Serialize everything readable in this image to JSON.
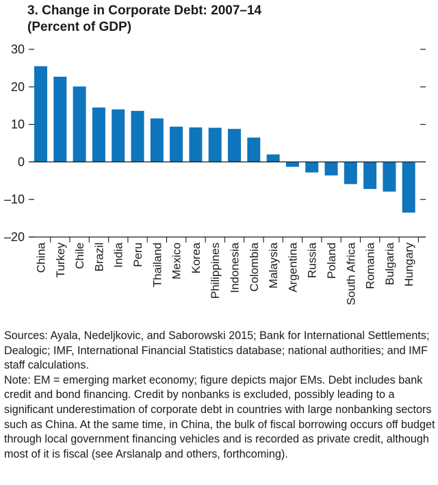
{
  "chart_data": {
    "type": "bar",
    "title": "3. Change in Corporate Debt: 2007–14",
    "subtitle": "(Percent of GDP)",
    "categories": [
      "China",
      "Turkey",
      "Chile",
      "Brazil",
      "India",
      "Peru",
      "Thailand",
      "Mexico",
      "Korea",
      "Philippines",
      "Indonesia",
      "Colombia",
      "Malaysia",
      "Argentina",
      "Russia",
      "Poland",
      "South Africa",
      "Romania",
      "Bulgaria",
      "Hungary"
    ],
    "values": [
      25.5,
      22.7,
      20.1,
      14.5,
      14.0,
      13.6,
      11.6,
      9.4,
      9.2,
      9.1,
      8.8,
      6.5,
      2.0,
      -1.3,
      -2.8,
      -3.6,
      -5.9,
      -7.2,
      -7.9,
      -13.5
    ],
    "ylim": [
      -20,
      30
    ],
    "yticks": [
      -20,
      -10,
      0,
      10,
      20,
      30
    ],
    "ytick_labels": [
      "–20",
      "–10",
      "0",
      "10",
      "20",
      "30"
    ],
    "xlabel": "",
    "ylabel": "",
    "bar_color": "#0f75bd",
    "axis_color": "#1a1a1a",
    "grid": false
  },
  "notes": {
    "sources": "Sources: Ayala, Nedeljkovic, and Saborowski 2015; Bank for International Settlements; Dealogic; IMF, International Financial Statistics database; national authorities; and IMF staff calculations.",
    "note": "Note: EM = emerging market economy; figure depicts major EMs. Debt includes bank credit and bond financing. Credit by nonbanks is excluded, possibly leading to a significant underestimation of corporate debt in countries with large nonbanking sectors such as China. At the same time, in China, the bulk of fiscal borrowing occurs off budget through local government financing vehicles and is recorded as private credit, although most of it is fiscal (see Arslanalp and others, forthcoming)."
  }
}
